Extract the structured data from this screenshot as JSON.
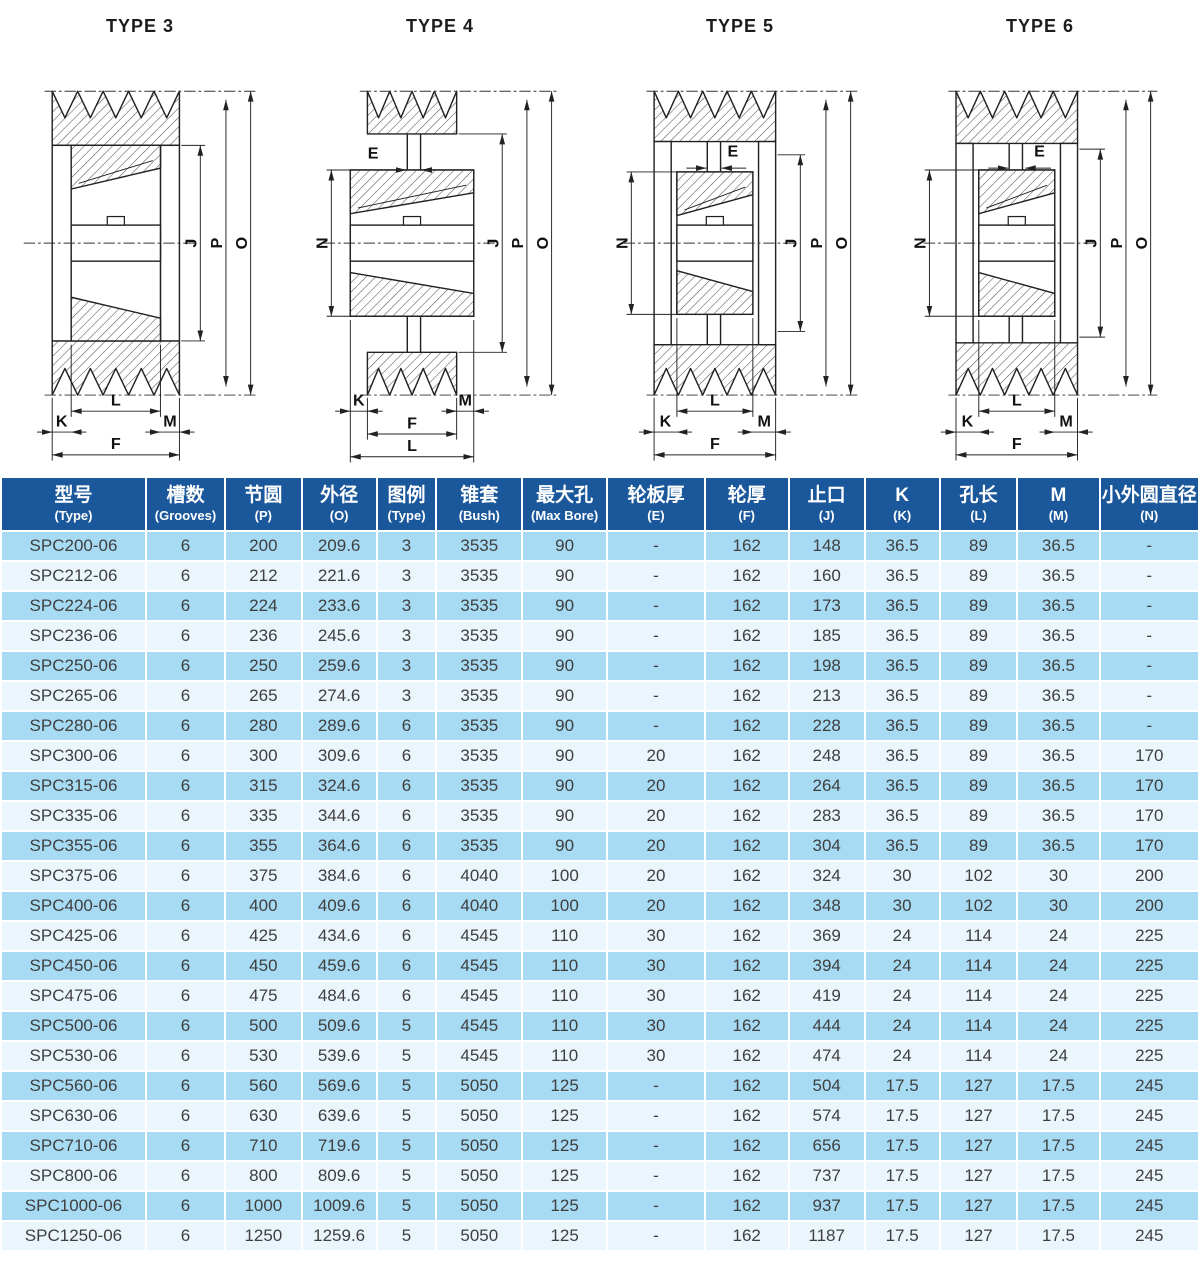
{
  "diagrams": [
    {
      "title": "TYPE 3",
      "labels": {
        "J": "J",
        "P": "P",
        "O": "O",
        "L": "L",
        "K": "K",
        "M": "M",
        "F": "F"
      }
    },
    {
      "title": "TYPE 4",
      "labels": {
        "E": "E",
        "N": "N",
        "J": "J",
        "P": "P",
        "O": "O",
        "K": "K",
        "M": "M",
        "F": "F",
        "L": "L"
      }
    },
    {
      "title": "TYPE 5",
      "labels": {
        "E": "E",
        "N": "N",
        "J": "J",
        "P": "P",
        "O": "O",
        "L": "L",
        "K": "K",
        "M": "M",
        "F": "F"
      }
    },
    {
      "title": "TYPE 6",
      "labels": {
        "E": "E",
        "N": "N",
        "J": "J",
        "P": "P",
        "O": "O",
        "L": "L",
        "K": "K",
        "M": "M",
        "F": "F"
      }
    }
  ],
  "table": {
    "headers": [
      {
        "zh": "型号",
        "en": "(Type)"
      },
      {
        "zh": "槽数",
        "en": "(Grooves)"
      },
      {
        "zh": "节圆",
        "en": "(P)"
      },
      {
        "zh": "外径",
        "en": "(O)"
      },
      {
        "zh": "图例",
        "en": "(Type)"
      },
      {
        "zh": "锥套",
        "en": "(Bush)"
      },
      {
        "zh": "最大孔",
        "en": "(Max Bore)"
      },
      {
        "zh": "轮板厚",
        "en": "(E)"
      },
      {
        "zh": "轮厚",
        "en": "(F)"
      },
      {
        "zh": "止口",
        "en": "(J)"
      },
      {
        "zh": "K",
        "en": "(K)"
      },
      {
        "zh": "孔长",
        "en": "(L)"
      },
      {
        "zh": "M",
        "en": "(M)"
      },
      {
        "zh": "小外圆直径",
        "en": "(N)"
      }
    ],
    "rows": [
      [
        "SPC200-06",
        "6",
        "200",
        "209.6",
        "3",
        "3535",
        "90",
        "-",
        "162",
        "148",
        "36.5",
        "89",
        "36.5",
        "-"
      ],
      [
        "SPC212-06",
        "6",
        "212",
        "221.6",
        "3",
        "3535",
        "90",
        "-",
        "162",
        "160",
        "36.5",
        "89",
        "36.5",
        "-"
      ],
      [
        "SPC224-06",
        "6",
        "224",
        "233.6",
        "3",
        "3535",
        "90",
        "-",
        "162",
        "173",
        "36.5",
        "89",
        "36.5",
        "-"
      ],
      [
        "SPC236-06",
        "6",
        "236",
        "245.6",
        "3",
        "3535",
        "90",
        "-",
        "162",
        "185",
        "36.5",
        "89",
        "36.5",
        "-"
      ],
      [
        "SPC250-06",
        "6",
        "250",
        "259.6",
        "3",
        "3535",
        "90",
        "-",
        "162",
        "198",
        "36.5",
        "89",
        "36.5",
        "-"
      ],
      [
        "SPC265-06",
        "6",
        "265",
        "274.6",
        "3",
        "3535",
        "90",
        "-",
        "162",
        "213",
        "36.5",
        "89",
        "36.5",
        "-"
      ],
      [
        "SPC280-06",
        "6",
        "280",
        "289.6",
        "6",
        "3535",
        "90",
        "-",
        "162",
        "228",
        "36.5",
        "89",
        "36.5",
        "-"
      ],
      [
        "SPC300-06",
        "6",
        "300",
        "309.6",
        "6",
        "3535",
        "90",
        "20",
        "162",
        "248",
        "36.5",
        "89",
        "36.5",
        "170"
      ],
      [
        "SPC315-06",
        "6",
        "315",
        "324.6",
        "6",
        "3535",
        "90",
        "20",
        "162",
        "264",
        "36.5",
        "89",
        "36.5",
        "170"
      ],
      [
        "SPC335-06",
        "6",
        "335",
        "344.6",
        "6",
        "3535",
        "90",
        "20",
        "162",
        "283",
        "36.5",
        "89",
        "36.5",
        "170"
      ],
      [
        "SPC355-06",
        "6",
        "355",
        "364.6",
        "6",
        "3535",
        "90",
        "20",
        "162",
        "304",
        "36.5",
        "89",
        "36.5",
        "170"
      ],
      [
        "SPC375-06",
        "6",
        "375",
        "384.6",
        "6",
        "4040",
        "100",
        "20",
        "162",
        "324",
        "30",
        "102",
        "30",
        "200"
      ],
      [
        "SPC400-06",
        "6",
        "400",
        "409.6",
        "6",
        "4040",
        "100",
        "20",
        "162",
        "348",
        "30",
        "102",
        "30",
        "200"
      ],
      [
        "SPC425-06",
        "6",
        "425",
        "434.6",
        "6",
        "4545",
        "110",
        "30",
        "162",
        "369",
        "24",
        "114",
        "24",
        "225"
      ],
      [
        "SPC450-06",
        "6",
        "450",
        "459.6",
        "6",
        "4545",
        "110",
        "30",
        "162",
        "394",
        "24",
        "114",
        "24",
        "225"
      ],
      [
        "SPC475-06",
        "6",
        "475",
        "484.6",
        "6",
        "4545",
        "110",
        "30",
        "162",
        "419",
        "24",
        "114",
        "24",
        "225"
      ],
      [
        "SPC500-06",
        "6",
        "500",
        "509.6",
        "5",
        "4545",
        "110",
        "30",
        "162",
        "444",
        "24",
        "114",
        "24",
        "225"
      ],
      [
        "SPC530-06",
        "6",
        "530",
        "539.6",
        "5",
        "4545",
        "110",
        "30",
        "162",
        "474",
        "24",
        "114",
        "24",
        "225"
      ],
      [
        "SPC560-06",
        "6",
        "560",
        "569.6",
        "5",
        "5050",
        "125",
        "-",
        "162",
        "504",
        "17.5",
        "127",
        "17.5",
        "245"
      ],
      [
        "SPC630-06",
        "6",
        "630",
        "639.6",
        "5",
        "5050",
        "125",
        "-",
        "162",
        "574",
        "17.5",
        "127",
        "17.5",
        "245"
      ],
      [
        "SPC710-06",
        "6",
        "710",
        "719.6",
        "5",
        "5050",
        "125",
        "-",
        "162",
        "656",
        "17.5",
        "127",
        "17.5",
        "245"
      ],
      [
        "SPC800-06",
        "6",
        "800",
        "809.6",
        "5",
        "5050",
        "125",
        "-",
        "162",
        "737",
        "17.5",
        "127",
        "17.5",
        "245"
      ],
      [
        "SPC1000-06",
        "6",
        "1000",
        "1009.6",
        "5",
        "5050",
        "125",
        "-",
        "162",
        "937",
        "17.5",
        "127",
        "17.5",
        "245"
      ],
      [
        "SPC1250-06",
        "6",
        "1250",
        "1259.6",
        "5",
        "5050",
        "125",
        "-",
        "162",
        "1187",
        "17.5",
        "127",
        "17.5",
        "245"
      ]
    ]
  },
  "colors": {
    "header_bg": "#1a579b",
    "row_dark": "#a7daf3",
    "row_light": "#eaf5fc",
    "header_text": "#ffffff",
    "cell_text": "#3f3f3f",
    "line": "#222222"
  }
}
